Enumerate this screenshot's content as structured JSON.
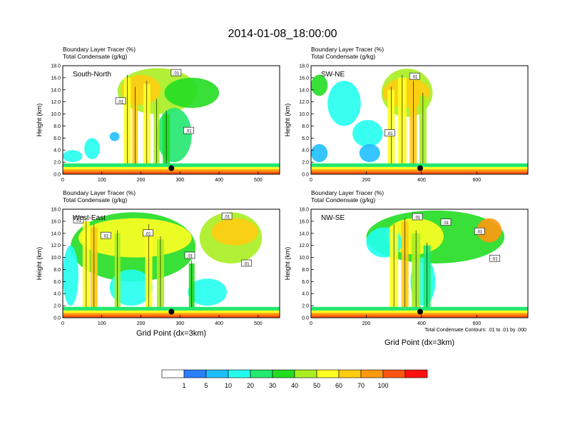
{
  "figure": {
    "title": "2014-01-08_18:00:00",
    "xlabel": "Grid Point (dx=3km)",
    "contour_note": "Total Condensate Contours: .01 to .01 by .000",
    "colorbar": {
      "labels": [
        "1",
        "5",
        "10",
        "20",
        "30",
        "40",
        "50",
        "60",
        "70",
        "100"
      ],
      "colors": [
        "#ffffff",
        "#2a7fff",
        "#1fbfff",
        "#22ffee",
        "#22e870",
        "#22dd22",
        "#aaee22",
        "#ffff22",
        "#ffcc11",
        "#ff9911",
        "#ff5511",
        "#ff1111"
      ]
    }
  },
  "chart_data": [
    {
      "type": "heatmap",
      "id": "south-north",
      "label": "South-North",
      "subtitle_line1": "Boundary Layer Tracer   (%)",
      "subtitle_line2": "Total Condensate   (g/kg)",
      "ylabel": "Height (km)",
      "xlim": [
        0,
        555
      ],
      "ylim": [
        0,
        18
      ],
      "x_ticks": [
        0,
        100,
        200,
        300,
        400,
        500
      ],
      "x_tick_labels": [
        "0",
        "100",
        "200",
        "300",
        "400",
        "500"
      ],
      "y_ticks": [
        0,
        2,
        4,
        6,
        8,
        10,
        12,
        14,
        16,
        18
      ],
      "y_tick_labels": [
        "0.0",
        "2.0",
        "4.0",
        "6.0",
        "8.0",
        "10.0",
        "12.0",
        "14.0",
        "16.0",
        "18.0"
      ],
      "marker_x": 278,
      "contour_labels": [
        {
          "text": ".01",
          "x": 290,
          "y": 16.8
        },
        {
          "text": ".01",
          "x": 148,
          "y": 12.1
        },
        {
          "text": ".01",
          "x": 322,
          "y": 7.2
        }
      ],
      "cloud": [
        {
          "x0": 140,
          "x1": 345,
          "ybot": 10.0,
          "ytop": 17.6,
          "v": 40
        },
        {
          "x0": 150,
          "x1": 250,
          "ybot": 11.5,
          "ytop": 16.5,
          "v": 60
        },
        {
          "x0": 260,
          "x1": 400,
          "ybot": 11.0,
          "ytop": 16.0,
          "v": 30
        },
        {
          "x0": 240,
          "x1": 330,
          "ybot": 2.0,
          "ytop": 11.0,
          "v": 20
        },
        {
          "x0": 0,
          "x1": 50,
          "ybot": 2.0,
          "ytop": 4.0,
          "v": 10
        },
        {
          "x0": 55,
          "x1": 95,
          "ybot": 2.5,
          "ytop": 6.0,
          "v": 10
        },
        {
          "x0": 120,
          "x1": 145,
          "ybot": 5.5,
          "ytop": 7.0,
          "v": 5
        }
      ],
      "columns": [
        {
          "x": 165,
          "w": 10,
          "ytop": 16.0,
          "v": 50
        },
        {
          "x": 185,
          "w": 8,
          "ytop": 14.0,
          "v": 60
        },
        {
          "x": 215,
          "w": 10,
          "ytop": 15.0,
          "v": 50
        },
        {
          "x": 240,
          "w": 8,
          "ytop": 12.0,
          "v": 40
        },
        {
          "x": 265,
          "w": 10,
          "ytop": 10.0,
          "v": 30
        }
      ]
    },
    {
      "type": "heatmap",
      "id": "sw-ne",
      "label": "SW-NE",
      "subtitle_line1": "Boundary Layer Tracer   (%)",
      "subtitle_line2": "Total Condensate   (g/kg)",
      "ylabel": "Height (km)",
      "xlim": [
        0,
        785
      ],
      "ylim": [
        0,
        18
      ],
      "x_ticks": [
        0,
        200,
        400,
        600
      ],
      "x_tick_labels": [
        "0",
        "200",
        "400",
        "600"
      ],
      "y_ticks": [
        0,
        2,
        4,
        6,
        8,
        10,
        12,
        14,
        16,
        18
      ],
      "y_tick_labels": [
        "0.0",
        "2.0",
        "4.0",
        "6.0",
        "8.0",
        "10.0",
        "12.0",
        "14.0",
        "16.0",
        "18.0"
      ],
      "marker_x": 395,
      "contour_labels": [
        {
          "text": ".01",
          "x": 375,
          "y": 16.2
        },
        {
          "text": ".01",
          "x": 285,
          "y": 6.8
        }
      ],
      "cloud": [
        {
          "x0": 255,
          "x1": 440,
          "ybot": 9.5,
          "ytop": 17.5,
          "v": 40
        },
        {
          "x0": 260,
          "x1": 430,
          "ybot": 11.0,
          "ytop": 16.0,
          "v": 60
        },
        {
          "x0": 0,
          "x1": 60,
          "ybot": 13.0,
          "ytop": 16.5,
          "v": 30
        },
        {
          "x0": 60,
          "x1": 180,
          "ybot": 8.0,
          "ytop": 15.5,
          "v": 10
        },
        {
          "x0": 150,
          "x1": 260,
          "ybot": 4.5,
          "ytop": 9.0,
          "v": 10
        },
        {
          "x0": 175,
          "x1": 250,
          "ybot": 2.0,
          "ytop": 5.0,
          "v": 5
        },
        {
          "x0": 0,
          "x1": 60,
          "ybot": 2.0,
          "ytop": 5.0,
          "v": 5
        }
      ],
      "columns": [
        {
          "x": 290,
          "w": 10,
          "ytop": 14.0,
          "v": 50
        },
        {
          "x": 330,
          "w": 12,
          "ytop": 16.0,
          "v": 50
        },
        {
          "x": 370,
          "w": 10,
          "ytop": 15.0,
          "v": 60
        },
        {
          "x": 405,
          "w": 10,
          "ytop": 13.0,
          "v": 40
        }
      ]
    },
    {
      "type": "heatmap",
      "id": "west-east",
      "label": "West-East",
      "subtitle_line1": "Boundary Layer Tracer   (%)",
      "subtitle_line2": "Total Condensate   (g/kg)",
      "ylabel": "Height (km)",
      "xlim": [
        0,
        555
      ],
      "ylim": [
        0,
        18
      ],
      "x_ticks": [
        0,
        100,
        200,
        300,
        400,
        500
      ],
      "x_tick_labels": [
        "0",
        "100",
        "200",
        "300",
        "400",
        "500"
      ],
      "y_ticks": [
        0,
        2,
        4,
        6,
        8,
        10,
        12,
        14,
        16,
        18
      ],
      "y_tick_labels": [
        "0.0",
        "2.0",
        "4.0",
        "6.0",
        "8.0",
        "10.0",
        "12.0",
        "14.0",
        "16.0",
        "18.0"
      ],
      "marker_x": 278,
      "contour_labels": [
        {
          "text": ".01",
          "x": 40,
          "y": 16.2
        },
        {
          "text": ".01",
          "x": 110,
          "y": 13.6
        },
        {
          "text": ".01",
          "x": 218,
          "y": 14.0
        },
        {
          "text": ".01",
          "x": 325,
          "y": 10.3
        },
        {
          "text": ".01",
          "x": 420,
          "y": 16.8
        },
        {
          "text": ".01",
          "x": 470,
          "y": 9.0
        }
      ],
      "cloud": [
        {
          "x0": 20,
          "x1": 340,
          "ybot": 6.0,
          "ytop": 17.5,
          "v": 30
        },
        {
          "x0": 40,
          "x1": 330,
          "ybot": 10.0,
          "ytop": 16.5,
          "v": 50
        },
        {
          "x0": 350,
          "x1": 510,
          "ybot": 9.0,
          "ytop": 17.5,
          "v": 40
        },
        {
          "x0": 380,
          "x1": 500,
          "ybot": 12.0,
          "ytop": 16.5,
          "v": 60
        },
        {
          "x0": 0,
          "x1": 40,
          "ybot": 2.0,
          "ytop": 12.0,
          "v": 10
        },
        {
          "x0": 120,
          "x1": 230,
          "ybot": 2.0,
          "ytop": 8.0,
          "v": 10
        },
        {
          "x0": 320,
          "x1": 420,
          "ybot": 2.0,
          "ytop": 6.5,
          "v": 10
        }
      ],
      "columns": [
        {
          "x": 60,
          "w": 10,
          "ytop": 16.0,
          "v": 50
        },
        {
          "x": 80,
          "w": 10,
          "ytop": 15.0,
          "v": 60
        },
        {
          "x": 140,
          "w": 8,
          "ytop": 14.0,
          "v": 40
        },
        {
          "x": 220,
          "w": 10,
          "ytop": 15.0,
          "v": 50
        },
        {
          "x": 250,
          "w": 10,
          "ytop": 13.0,
          "v": 40
        },
        {
          "x": 330,
          "w": 8,
          "ytop": 9.0,
          "v": 30
        }
      ]
    },
    {
      "type": "heatmap",
      "id": "nw-se",
      "label": "NW-SE",
      "subtitle_line1": "Boundary Layer Tracer   (%)",
      "subtitle_line2": "Total Condensate   (g/kg)",
      "ylabel": "Height (km)",
      "xlim": [
        0,
        785
      ],
      "ylim": [
        0,
        18
      ],
      "x_ticks": [
        0,
        200,
        400,
        600
      ],
      "x_tick_labels": [
        "0",
        "200",
        "400",
        "600"
      ],
      "y_ticks": [
        0,
        2,
        4,
        6,
        8,
        10,
        12,
        14,
        16,
        18
      ],
      "y_tick_labels": [
        "0.0",
        "2.0",
        "4.0",
        "6.0",
        "8.0",
        "10.0",
        "12.0",
        "14.0",
        "16.0",
        "18.0"
      ],
      "marker_x": 395,
      "contour_labels": [
        {
          "text": ".01",
          "x": 385,
          "y": 16.7
        },
        {
          "text": ".01",
          "x": 488,
          "y": 15.8
        },
        {
          "text": ".01",
          "x": 610,
          "y": 14.3
        },
        {
          "text": ".01",
          "x": 665,
          "y": 9.8
        }
      ],
      "cloud": [
        {
          "x0": 200,
          "x1": 700,
          "ybot": 9.0,
          "ytop": 17.8,
          "v": 30
        },
        {
          "x0": 270,
          "x1": 480,
          "ybot": 10.5,
          "ytop": 16.5,
          "v": 50
        },
        {
          "x0": 600,
          "x1": 690,
          "ybot": 12.5,
          "ytop": 16.5,
          "v": 70
        },
        {
          "x0": 200,
          "x1": 330,
          "ybot": 10.0,
          "ytop": 15.0,
          "v": 10
        },
        {
          "x0": 360,
          "x1": 450,
          "ybot": 2.0,
          "ytop": 10.0,
          "v": 10
        }
      ],
      "columns": [
        {
          "x": 300,
          "w": 12,
          "ytop": 15.0,
          "v": 50
        },
        {
          "x": 340,
          "w": 10,
          "ytop": 16.0,
          "v": 60
        },
        {
          "x": 380,
          "w": 12,
          "ytop": 14.0,
          "v": 40
        },
        {
          "x": 420,
          "w": 10,
          "ytop": 12.0,
          "v": 20
        }
      ]
    }
  ]
}
